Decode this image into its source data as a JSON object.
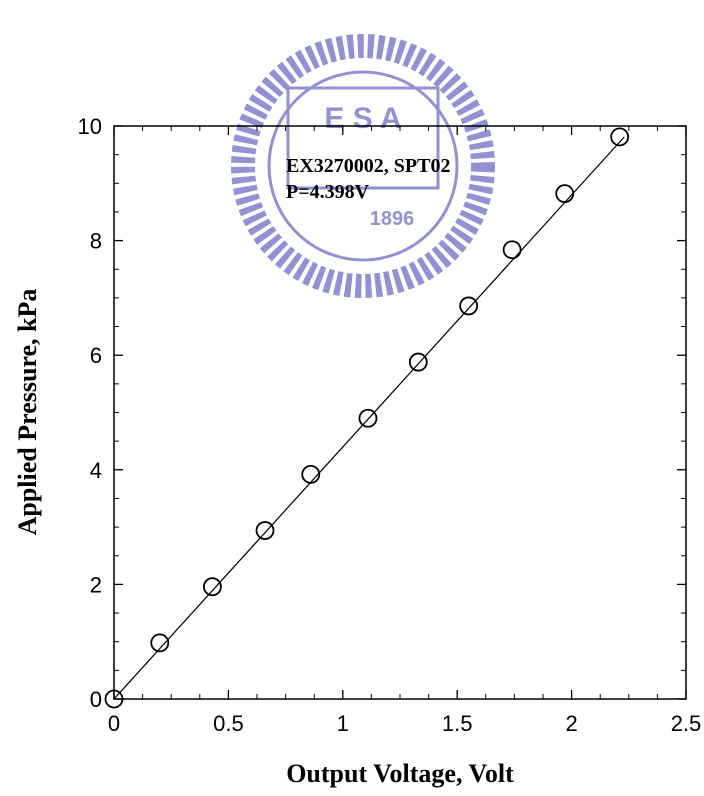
{
  "chart_data": {
    "type": "scatter",
    "title": "",
    "xlabel": "Output Voltage, Volt",
    "ylabel": "Applied Pressure, kPa",
    "xlim": [
      0,
      2.5
    ],
    "ylim": [
      0,
      10
    ],
    "x_ticks": [
      "0",
      "0.5",
      "1",
      "1.5",
      "2",
      "2.5"
    ],
    "y_ticks": [
      "0",
      "2",
      "4",
      "6",
      "8",
      "10"
    ],
    "grid": false,
    "annotations": [
      "EX3270002, SPT02",
      "P=4.398V"
    ],
    "series": [
      {
        "marker": "open-circle",
        "x": [
          0,
          0.2,
          0.43,
          0.66,
          0.86,
          1.11,
          1.33,
          1.55,
          1.74,
          1.97,
          2.21
        ],
        "y": [
          0,
          0.98,
          1.96,
          2.94,
          3.92,
          4.9,
          5.88,
          6.86,
          7.84,
          8.82,
          9.81
        ]
      }
    ],
    "fit_line": {
      "slope": 4.398,
      "x_range": [
        0,
        2.23
      ]
    }
  },
  "watermark": {
    "letters": "E S A",
    "year": "1896",
    "color": "#3a3ab0"
  }
}
